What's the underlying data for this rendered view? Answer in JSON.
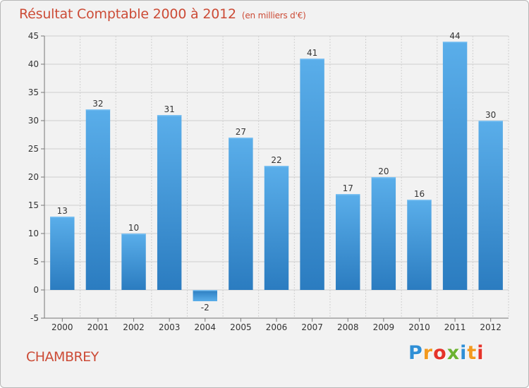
{
  "header": {
    "title": "Résultat Comptable 2000 à 2012",
    "unit_note": "(en milliers d'€)"
  },
  "footer": {
    "commune": "CHAMBREY",
    "brand_letters": [
      "P",
      "r",
      "o",
      "x",
      "i",
      "t",
      "i"
    ],
    "brand_colors": [
      "#2f8fd6",
      "#f39a1f",
      "#e5332a",
      "#6cb330",
      "#2f8fd6",
      "#f39a1f",
      "#e5332a"
    ]
  },
  "colors": {
    "title": "#cc4b36",
    "bar_light": "#5aaeea",
    "bar_dark": "#2b7cc0",
    "grid": "#cfcfcf",
    "axis_text": "#333333"
  },
  "chart_data": {
    "type": "bar",
    "title": "Résultat Comptable 2000 à 2012",
    "categories": [
      "2000",
      "2001",
      "2002",
      "2003",
      "2004",
      "2005",
      "2006",
      "2007",
      "2008",
      "2009",
      "2010",
      "2011",
      "2012"
    ],
    "values": [
      13,
      32,
      10,
      31,
      -2,
      27,
      22,
      41,
      17,
      20,
      16,
      44,
      30
    ],
    "ylim": [
      -5,
      45
    ],
    "yticks": [
      -5,
      0,
      5,
      10,
      15,
      20,
      25,
      30,
      35,
      40,
      45
    ],
    "grid": true,
    "data_labels": true
  }
}
